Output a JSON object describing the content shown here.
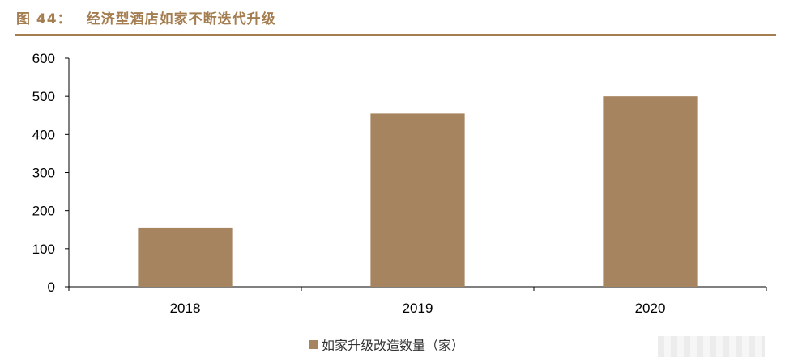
{
  "figure": {
    "number": "图 44：",
    "title": "经济型酒店如家不断迭代升级"
  },
  "colors": {
    "accent": "#a47d50",
    "bar": "#a68460",
    "axis": "#000000"
  },
  "chart_data": {
    "type": "bar",
    "title": "",
    "xlabel": "",
    "ylabel": "",
    "categories": [
      "2018",
      "2019",
      "2020"
    ],
    "series": [
      {
        "name": "如家升级改造数量（家）",
        "values": [
          155,
          455,
          500
        ]
      }
    ],
    "ylim": [
      0,
      600
    ],
    "yticks": [
      0,
      100,
      200,
      300,
      400,
      500,
      600
    ],
    "grid": false,
    "legend_position": "bottom-center"
  }
}
